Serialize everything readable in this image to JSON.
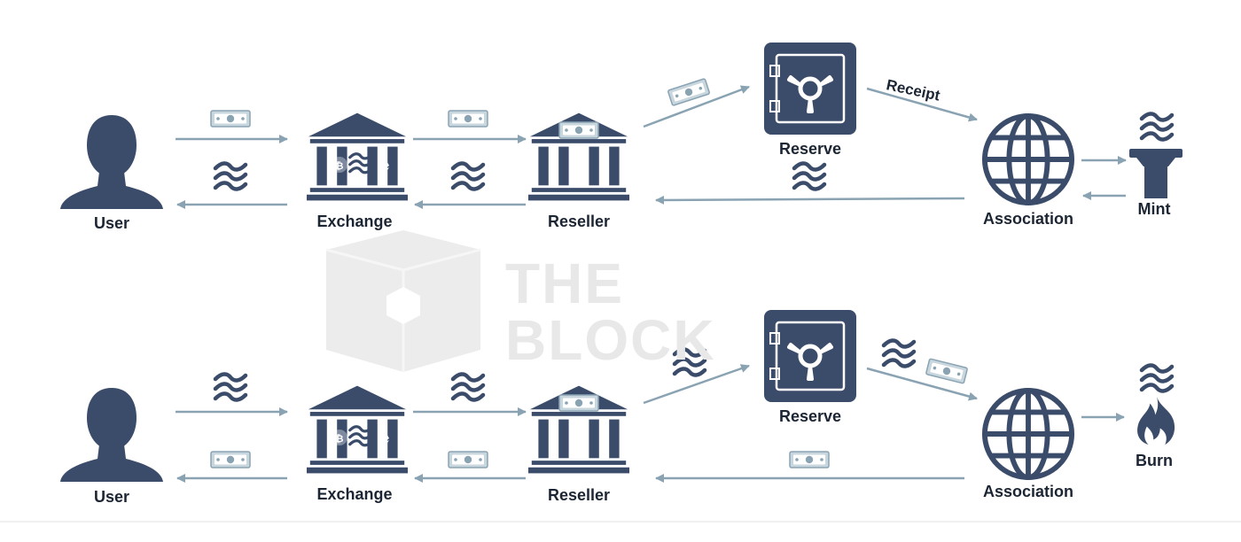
{
  "diagram": {
    "mint_flow": {
      "user": "User",
      "exchange": "Exchange",
      "reseller": "Reseller",
      "reserve": "Reserve",
      "association": "Association",
      "mint": "Mint",
      "receipt": "Receipt"
    },
    "burn_flow": {
      "user": "User",
      "exchange": "Exchange",
      "reseller": "Reseller",
      "reserve": "Reserve",
      "association": "Association",
      "burn": "Burn"
    },
    "watermark": {
      "line1": "THE",
      "line2": "BLOCK"
    }
  },
  "colors": {
    "icon": "#3b4c6b",
    "arrow": "#8aa3b3",
    "text": "#1c2533",
    "watermark": "#e8e8e8"
  },
  "icons": [
    "user-icon",
    "bank-icon",
    "safe-icon",
    "globe-icon",
    "pedestal-icon",
    "flame-icon",
    "banknote-icon",
    "libra-wave-icon",
    "bitcoin-icon",
    "ethereum-icon"
  ]
}
